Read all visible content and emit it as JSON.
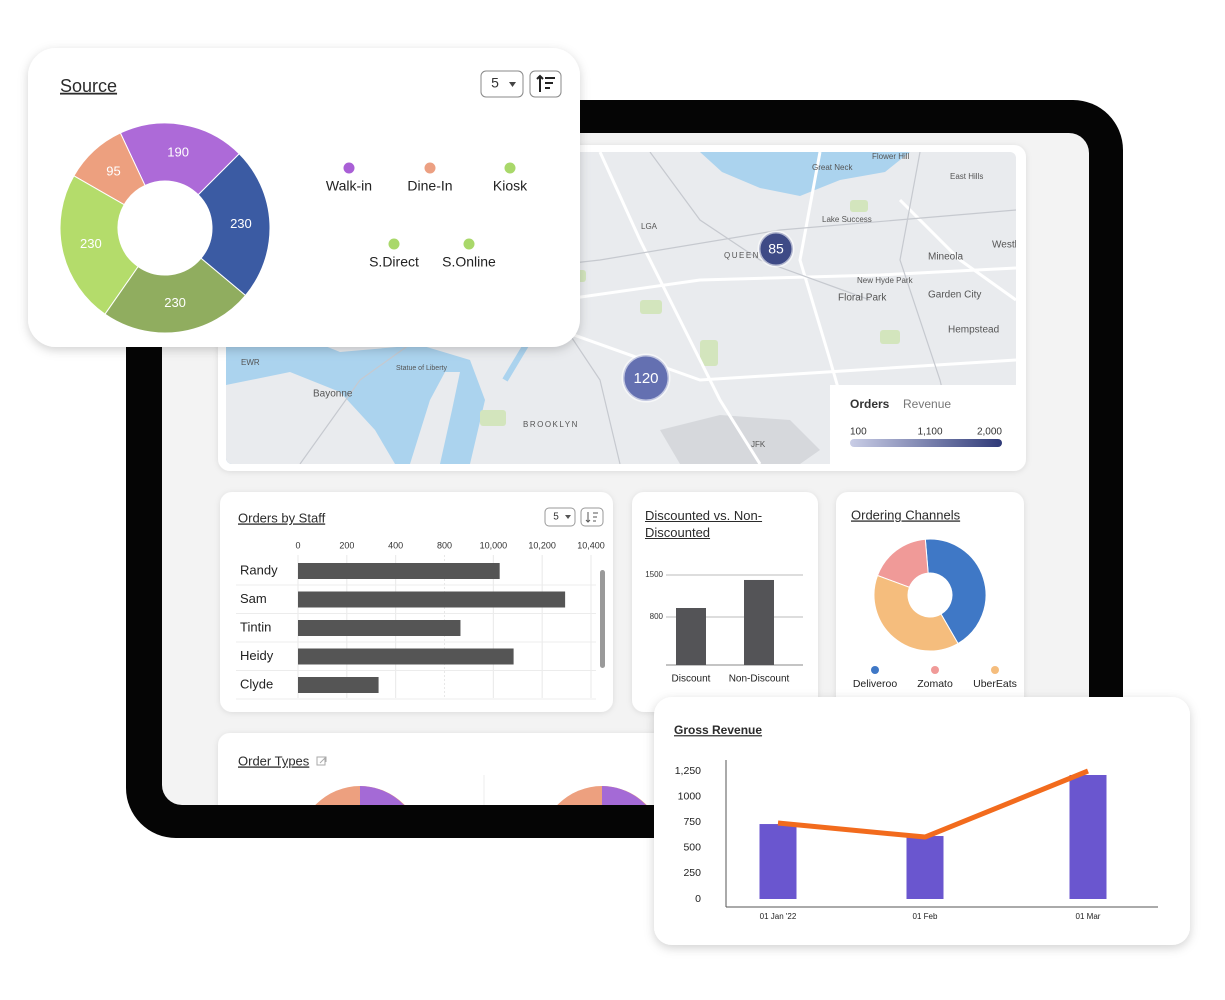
{
  "map": {
    "labels": [
      "Flower Hill",
      "Great Neck",
      "East Hills",
      "LGA",
      "Lake Success",
      "QUEENS",
      "Mineola",
      "Westl",
      "New Hyde Park",
      "Floral Park",
      "Garden City",
      "Hempstead",
      "EWR",
      "Statue of Liberty",
      "Bayonne",
      "BROOKLYN",
      "JFK"
    ],
    "clusters": [
      85,
      120
    ],
    "legend": {
      "tabs": [
        "Orders",
        "Revenue"
      ],
      "ticks": [
        100,
        {
          "value": 1100,
          "label": "1,100"
        },
        {
          "value": 2000,
          "label": "2,000"
        }
      ]
    }
  },
  "chart_data": [
    {
      "type": "donut",
      "title": "Source",
      "selector": 5,
      "categories": [
        "Walk-in",
        "Dine-In",
        "Kiosk",
        "S.Direct",
        "S.Online"
      ],
      "values": [
        190,
        95,
        230,
        230,
        230
      ],
      "colors": [
        "#ad6ad8",
        "#eda07f",
        "#b4dc6b",
        "#90ad5f",
        "#3b5ba3"
      ],
      "legend_colors": [
        "#a95fd6",
        "#eca082",
        "#a9d86a",
        "#a9d86a",
        "#a9d86a"
      ]
    },
    {
      "type": "hbar",
      "title": "Orders by Staff",
      "selector": 5,
      "categories": [
        "Randy",
        "Sam",
        "Tintin",
        "Heidy",
        "Clyde"
      ],
      "values": [
        10026,
        10294,
        3808,
        10083,
        330
      ],
      "color": "#555555",
      "xlim": [
        0,
        10400
      ],
      "xticks": [
        0,
        200,
        400,
        800,
        {
          "value": 10000,
          "label": "10,000"
        },
        {
          "value": 10200,
          "label": "10,200"
        },
        {
          "value": 10400,
          "label": "10,400"
        }
      ]
    },
    {
      "type": "bar",
      "title": "Discounted vs. Non-Discounted",
      "categories": [
        "Discount",
        "Non-Discount"
      ],
      "values": [
        950,
        1417
      ],
      "color": "#545457",
      "ylim": [
        0,
        1500
      ],
      "yticks": [
        800,
        1500
      ]
    },
    {
      "type": "donut",
      "title": "Ordering Channels",
      "categories": [
        "Deliveroo",
        "Zomato",
        "UberEats"
      ],
      "values": [
        43,
        18,
        39
      ],
      "colors": [
        "#3f78c6",
        "#f09a98",
        "#f5bd7d"
      ],
      "legend_colors": [
        "#3f78c6",
        "#f09a98",
        "#f5bd7d"
      ]
    },
    {
      "type": "bar_line",
      "title": "Gross Revenue",
      "categories": [
        "01 Jan '22",
        "01 Feb",
        "01 Mar"
      ],
      "series": [
        {
          "type": "bar",
          "color": "#6a56cf",
          "values": [
            732,
            615,
            1211
          ]
        },
        {
          "type": "line",
          "color": "#f26b1d",
          "values": [
            742,
            605,
            1250
          ]
        }
      ],
      "ylim": [
        0,
        1250
      ],
      "yticks": [
        0,
        250,
        500,
        750,
        1000,
        {
          "value": 1250,
          "label": "1,250"
        }
      ]
    }
  ],
  "order_types": {
    "title": "Order Types"
  }
}
